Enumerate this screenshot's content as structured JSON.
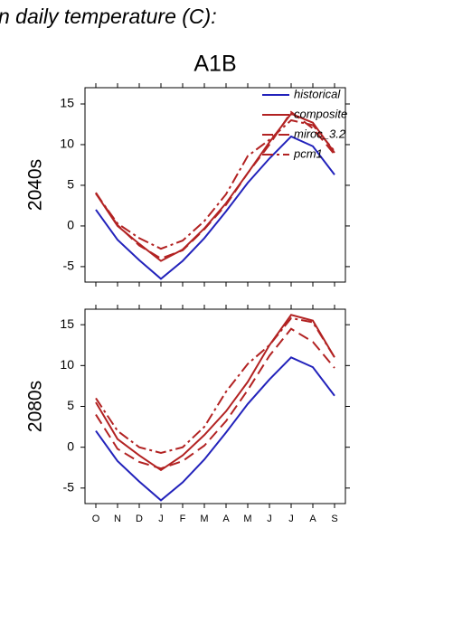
{
  "chart_data": [
    {
      "type": "line",
      "title": "n daily temperature (C):",
      "subtitle": "A1B",
      "ylabel": "2040s",
      "ylim": [
        -6.9,
        17
      ],
      "yticks": [
        -5,
        0,
        5,
        10,
        15
      ],
      "legend": "upper right",
      "series": [
        {
          "name": "historical",
          "color": "#2222bb",
          "dash": "none",
          "values": [
            2,
            -1.7,
            -4.2,
            -6.5,
            -4.3,
            -1.5,
            1.8,
            5.3,
            8.3,
            11,
            9.8,
            6.3
          ]
        },
        {
          "name": "composite",
          "color": "#b22222",
          "dash": "none",
          "values": [
            4,
            0,
            -2.2,
            -4.3,
            -2.9,
            -0.3,
            2.8,
            6.5,
            10.3,
            13.8,
            12.7,
            9
          ]
        },
        {
          "name": "miroc_3.2",
          "color": "#b22222",
          "dash": "12,6",
          "values": [
            4.1,
            0.1,
            -2.4,
            -4.0,
            -3.0,
            -0.4,
            2.6,
            6.5,
            10,
            14,
            12,
            8.8
          ]
        },
        {
          "name": "pcm1",
          "color": "#b22222",
          "dash": "12,4,3,4",
          "values": [
            4,
            0.3,
            -1.5,
            -2.8,
            -1.8,
            0.6,
            3.9,
            8.6,
            10.6,
            13,
            12.4,
            9.2
          ]
        }
      ]
    },
    {
      "type": "line",
      "ylabel": "2080s",
      "categories": [
        "O",
        "N",
        "D",
        "J",
        "F",
        "M",
        "A",
        "M",
        "J",
        "J",
        "A",
        "S"
      ],
      "ylim": [
        -6.9,
        16.9
      ],
      "yticks": [
        -5,
        0,
        5,
        10,
        15
      ],
      "series": [
        {
          "color": "#2222bb",
          "dash": "none",
          "values": [
            2,
            -1.7,
            -4.2,
            -6.5,
            -4.3,
            -1.5,
            1.8,
            5.3,
            8.3,
            11,
            9.8,
            6.3
          ]
        },
        {
          "color": "#b22222",
          "dash": "none",
          "values": [
            5.5,
            1,
            -1,
            -2.8,
            -1.0,
            1.5,
            4.4,
            8,
            12.5,
            16.2,
            15.5,
            11
          ]
        },
        {
          "color": "#b22222",
          "dash": "12,6",
          "values": [
            4,
            -0.2,
            -1.8,
            -2.6,
            -1.7,
            0.2,
            3.2,
            7,
            11.2,
            14.5,
            12.9,
            9.7
          ]
        },
        {
          "color": "#b22222",
          "dash": "12,4,3,4",
          "values": [
            6,
            2,
            0,
            -0.7,
            0,
            2.5,
            6.8,
            10.2,
            12.5,
            15.8,
            15.3,
            11
          ]
        }
      ]
    }
  ]
}
